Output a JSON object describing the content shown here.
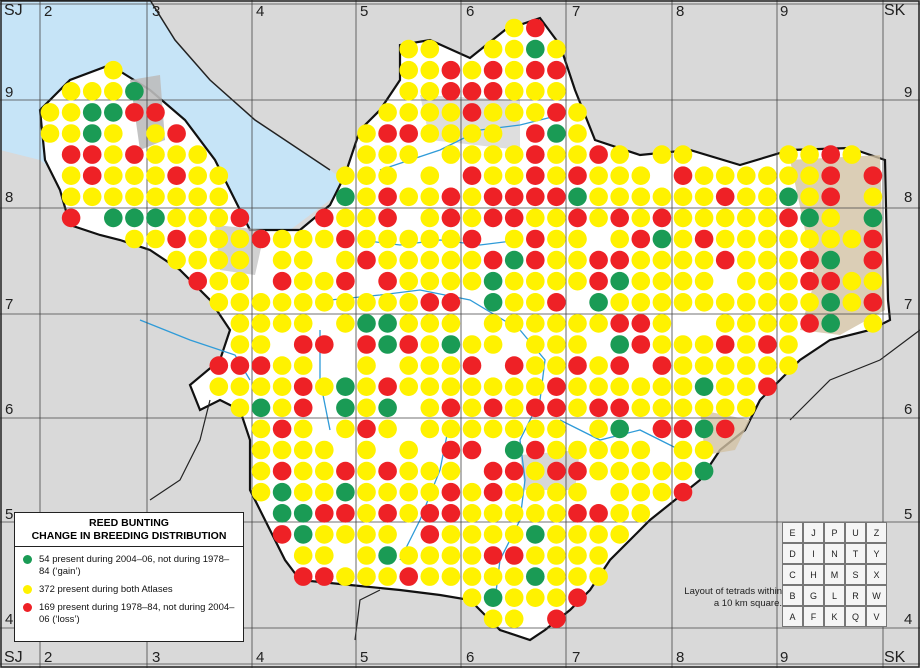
{
  "map": {
    "title_line1": "REED BUNTING",
    "title_line2": "CHANGE IN BREEDING DISTRIBUTION",
    "corner_top_left": "SJ",
    "corner_top_right": "SK",
    "corner_bottom_left": "SJ",
    "corner_bottom_right": "SK",
    "easting_labels": [
      "2",
      "3",
      "4",
      "5",
      "6",
      "7",
      "8",
      "9"
    ],
    "northing_labels": [
      "9",
      "8",
      "7",
      "6",
      "5",
      "4"
    ],
    "colors": {
      "sea": "#c6e4f7",
      "land_outside": "#d9d9d9",
      "county": "#ffffff",
      "urban": "#bdbdbd",
      "upland": "#d2c2a4",
      "river": "#2f9bd8",
      "gain": "#1a9b55",
      "both": "#fff200",
      "loss": "#ee2126"
    },
    "legend": [
      {
        "key": "gain",
        "count": "54",
        "text": "54 present during 2004–06, not during 1978–84 (‘gain’)"
      },
      {
        "key": "both",
        "count": "372",
        "text": "372 present during both Atlases"
      },
      {
        "key": "loss",
        "count": "169",
        "text": "169 present during 1978–84, not during 2004–06 (‘loss’)"
      }
    ],
    "tetrad_layout": {
      "rows": [
        [
          "E",
          "J",
          "P",
          "U",
          "Z"
        ],
        [
          "D",
          "I",
          "N",
          "T",
          "Y"
        ],
        [
          "C",
          "H",
          "M",
          "S",
          "X"
        ],
        [
          "B",
          "G",
          "L",
          "R",
          "W"
        ],
        [
          "A",
          "F",
          "K",
          "Q",
          "V"
        ]
      ],
      "caption": "Layout of tetrads within a 10 km square."
    }
  }
}
